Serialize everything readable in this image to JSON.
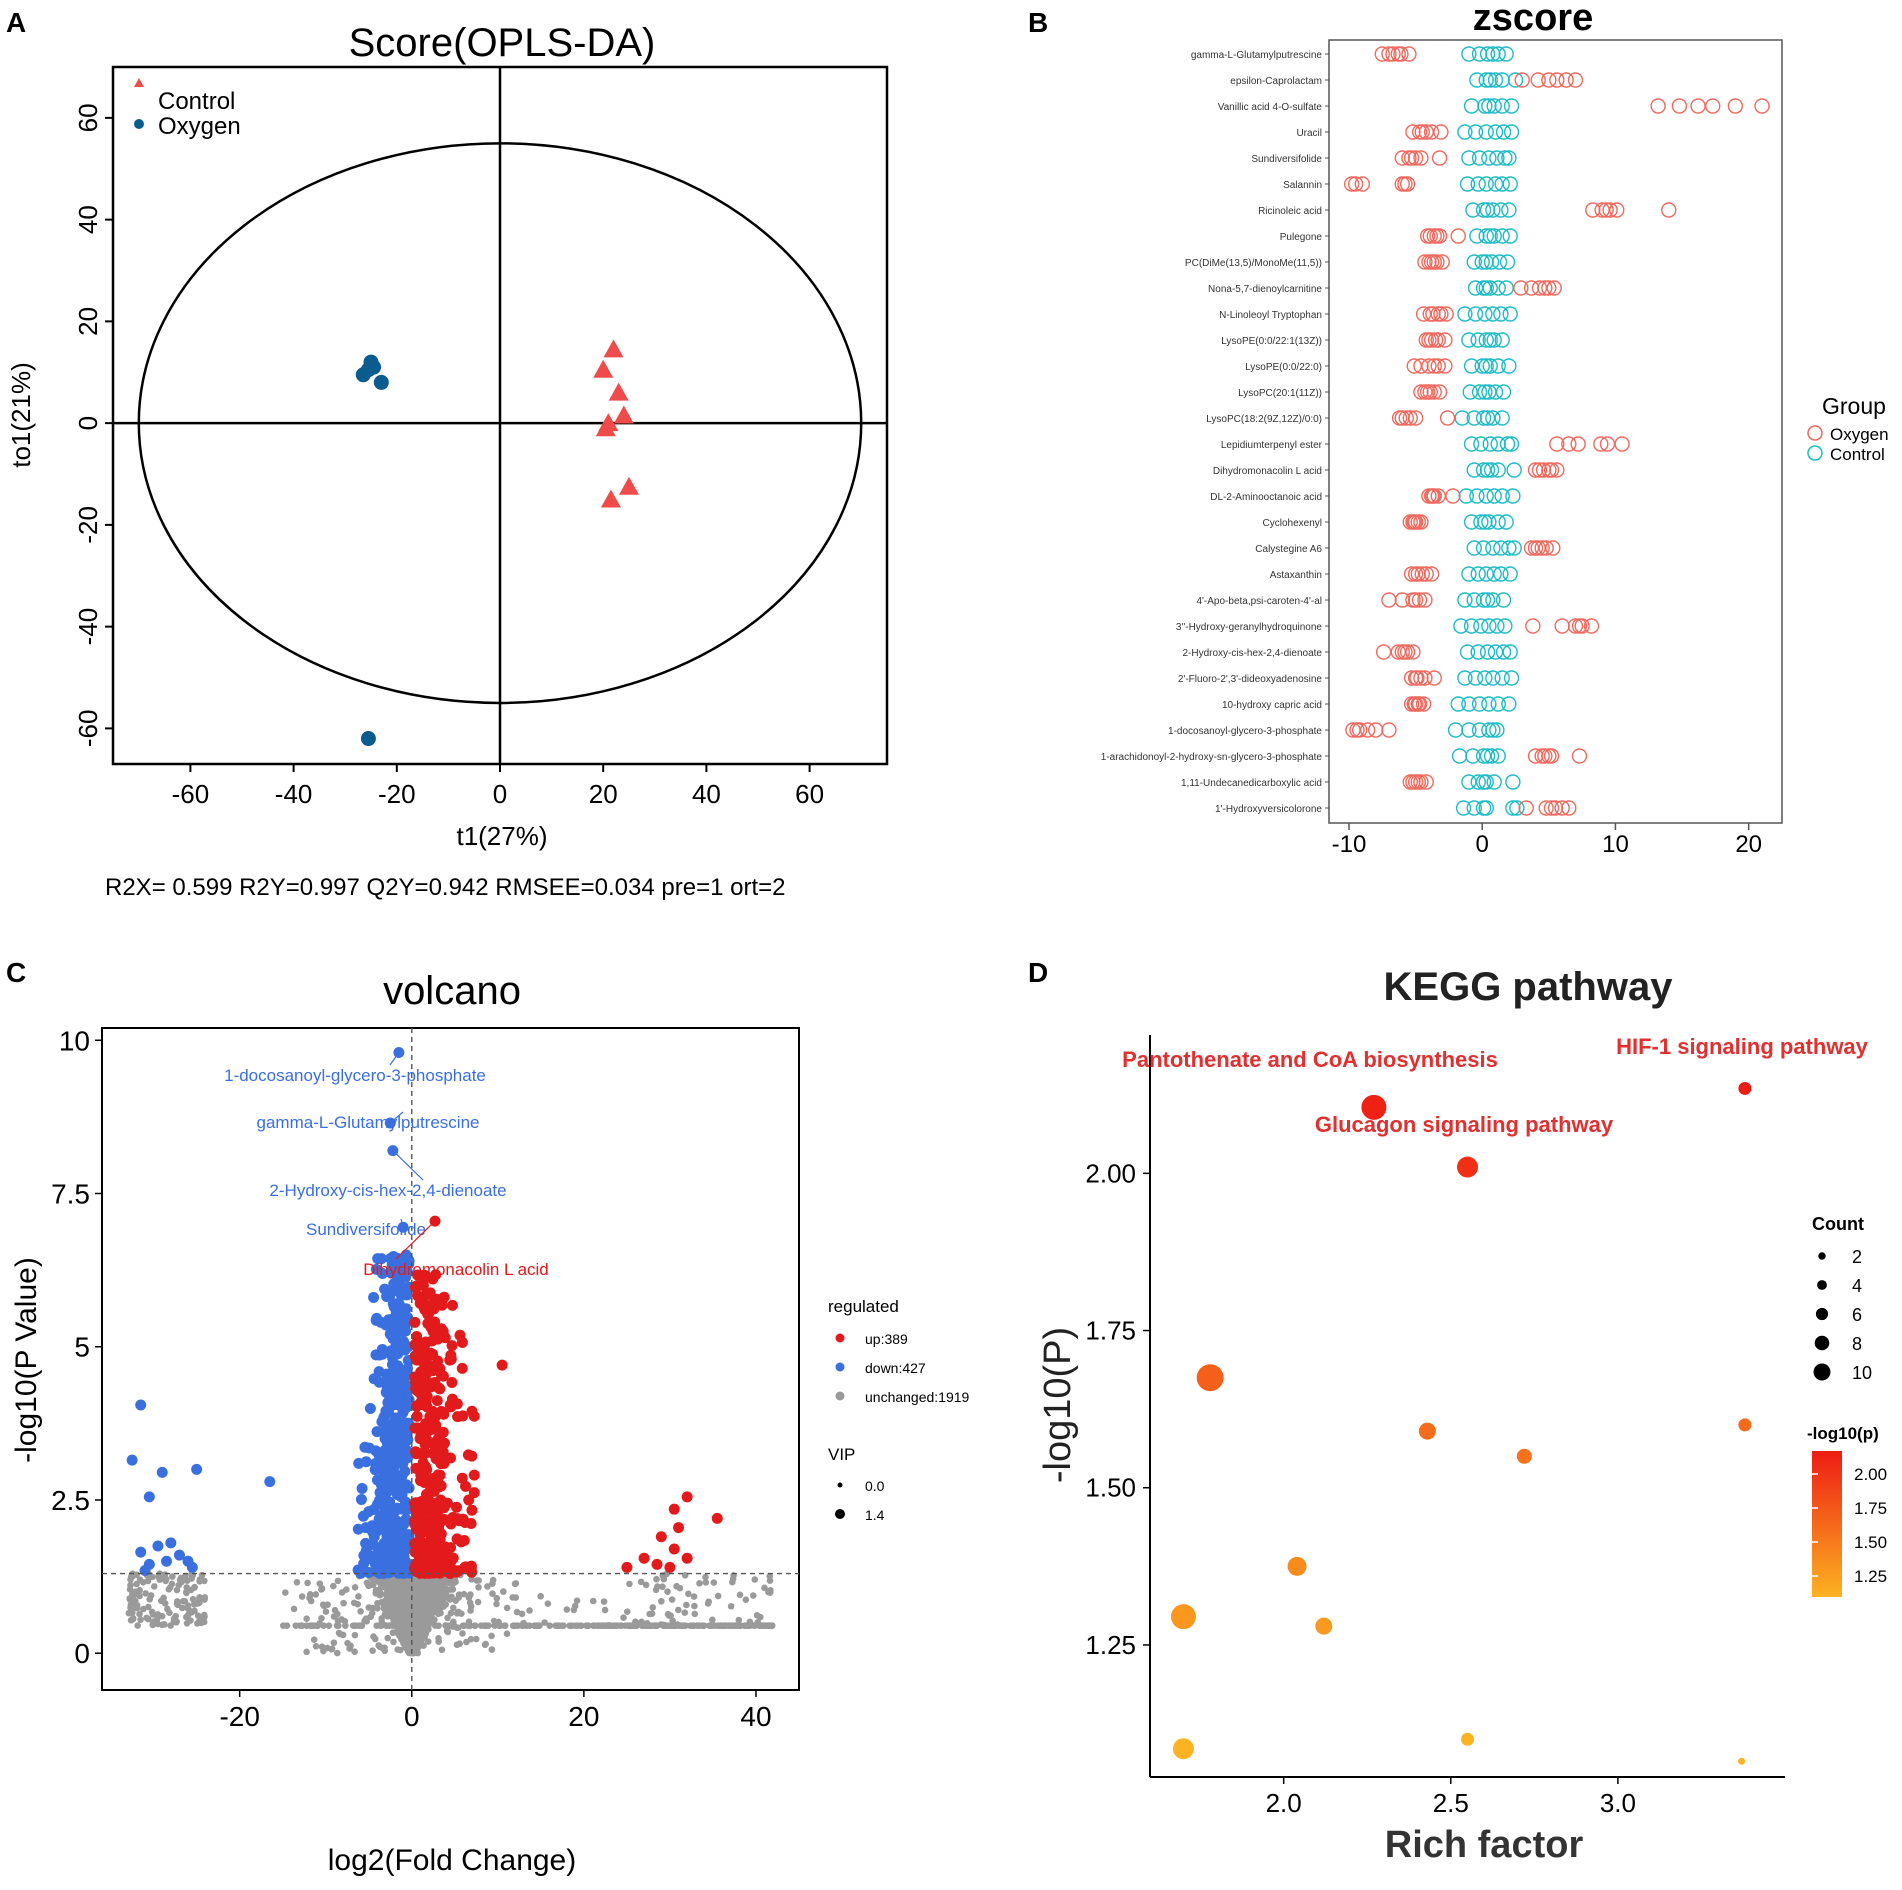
{
  "panels": {
    "A": "A",
    "B": "B",
    "C": "C",
    "D": "D"
  },
  "chart_data": [
    {
      "type": "scatter",
      "title": "Score(OPLS-DA)",
      "xlabel": "t1(27%)",
      "ylabel": "to1(21%)",
      "xlim": [
        -75,
        75
      ],
      "ylim": [
        -67,
        70
      ],
      "xticks": [
        -60,
        -40,
        -20,
        0,
        20,
        40,
        60
      ],
      "yticks": [
        -60,
        -40,
        -20,
        0,
        20,
        40,
        60
      ],
      "ellipse": {
        "rx": 70,
        "ry": 55
      },
      "stats": "R2X= 0.599  R2Y=0.997  Q2Y=0.942  RMSEE=0.034  pre=1  ort=2",
      "legend_position": "top-left",
      "series": [
        {
          "name": "Control",
          "color": "#ef4b4b",
          "marker": "triangle",
          "points": [
            [
              22,
              14.5
            ],
            [
              20,
              10.5
            ],
            [
              23,
              6
            ],
            [
              24,
              1.5
            ],
            [
              21,
              0
            ],
            [
              20.5,
              -1
            ],
            [
              25,
              -12.5
            ],
            [
              21.5,
              -15
            ]
          ]
        },
        {
          "name": "Oxygen",
          "color": "#0b5c8e",
          "marker": "circle",
          "points": [
            [
              -25,
              12
            ],
            [
              -24.5,
              11
            ],
            [
              -26.5,
              9.5
            ],
            [
              -25.5,
              10.5
            ],
            [
              -23,
              8
            ],
            [
              -25.5,
              -62
            ]
          ]
        }
      ]
    },
    {
      "type": "scatter",
      "title": "zscore",
      "xlim": [
        -11.5,
        22.5
      ],
      "xticks": [
        -10,
        0,
        10,
        20
      ],
      "legend_title": "Group",
      "legend_position": "right",
      "groups": [
        {
          "name": "Oxygen",
          "color": "#ee6a5f"
        },
        {
          "name": "Control",
          "color": "#1dbcc6"
        }
      ],
      "metabolites": [
        {
          "name": "gamma-L-Glutamylputrescine",
          "oxygen": [
            -7.5,
            -6.7,
            -6.1,
            -5.5,
            -7.0,
            -6.3
          ],
          "control": [
            -1.0,
            -0.2,
            0.4,
            1.2,
            0.8,
            1.8
          ]
        },
        {
          "name": "epsilon-Caprolactam",
          "oxygen": [
            3.0,
            4.2,
            5.0,
            6.3,
            7.0,
            5.6
          ],
          "control": [
            -0.4,
            0.3,
            1.0,
            1.5,
            0.6,
            2.5
          ]
        },
        {
          "name": "Vanillic acid 4-O-sulfate",
          "oxygen": [
            13.2,
            14.8,
            16.2,
            17.3,
            19.0,
            21.0
          ],
          "control": [
            -0.8,
            0.2,
            0.9,
            1.5,
            0.5,
            2.2
          ]
        },
        {
          "name": "Uracil",
          "oxygen": [
            -5.2,
            -4.7,
            -4.2,
            -3.8,
            -3.1,
            -4.5
          ],
          "control": [
            -1.3,
            -0.5,
            0.3,
            1.0,
            1.6,
            2.2
          ]
        },
        {
          "name": "Sundiversifolide",
          "oxygen": [
            -6.0,
            -5.5,
            -5.0,
            -4.6,
            -3.2,
            -5.3
          ],
          "control": [
            -1.0,
            -0.2,
            0.5,
            1.1,
            1.7,
            2.0
          ]
        },
        {
          "name": "Salannin",
          "oxygen": [
            -9.8,
            -9.0,
            -6.0,
            -5.6,
            -9.5,
            -5.8
          ],
          "control": [
            -1.1,
            -0.3,
            0.3,
            1.0,
            1.5,
            2.1
          ]
        },
        {
          "name": "Ricinoleic acid",
          "oxygen": [
            8.3,
            9.0,
            9.6,
            10.1,
            14.0,
            9.3
          ],
          "control": [
            -0.7,
            0.1,
            0.8,
            1.4,
            2.0,
            0.4
          ]
        },
        {
          "name": "Pulegone",
          "oxygen": [
            -4.1,
            -3.6,
            -3.2,
            -1.8,
            -3.9,
            -3.4
          ],
          "control": [
            -0.4,
            0.3,
            0.9,
            1.5,
            2.1,
            0.6
          ]
        },
        {
          "name": "PC(DiMe(13,5)/MonoMe(11,5))",
          "oxygen": [
            -4.3,
            -3.8,
            -3.4,
            -3.0,
            -3.6,
            -4.0
          ],
          "control": [
            -0.6,
            0.0,
            0.7,
            1.3,
            1.9,
            0.3
          ]
        },
        {
          "name": "Nona-5,7-dienoylcarnitine",
          "oxygen": [
            2.9,
            3.7,
            4.3,
            5.0,
            5.4,
            4.7
          ],
          "control": [
            -0.5,
            0.1,
            0.6,
            1.2,
            1.8,
            0.3
          ]
        },
        {
          "name": "N-Linoleoyl Tryptophan",
          "oxygen": [
            -4.4,
            -3.7,
            -3.1,
            -2.7,
            -3.3,
            -3.9
          ],
          "control": [
            -1.3,
            -0.5,
            0.2,
            0.8,
            1.4,
            2.1
          ]
        },
        {
          "name": "LysoPE(0:0/22:1(13Z))",
          "oxygen": [
            -4.2,
            -3.8,
            -3.3,
            -2.8,
            -3.5,
            -4.0
          ],
          "control": [
            -1.0,
            -0.3,
            0.3,
            0.9,
            1.5,
            0.6
          ]
        },
        {
          "name": "LysoPE(0:0/22:0)",
          "oxygen": [
            -5.1,
            -4.6,
            -4.0,
            -3.3,
            -2.8,
            -3.6
          ],
          "control": [
            -0.8,
            0.0,
            0.6,
            1.2,
            2.0,
            0.3
          ]
        },
        {
          "name": "LysoPC(20:1(11Z))",
          "oxygen": [
            -4.6,
            -4.1,
            -3.6,
            -3.2,
            -3.9,
            -4.3
          ],
          "control": [
            -0.9,
            -0.2,
            0.5,
            1.0,
            1.6,
            0.2
          ]
        },
        {
          "name": "LysoPC(18:2(9Z,12Z)/0:0)",
          "oxygen": [
            -6.2,
            -5.7,
            -5.0,
            -2.6,
            -6.0,
            -5.4
          ],
          "control": [
            -1.5,
            -0.6,
            0.1,
            0.8,
            1.5,
            0.4
          ]
        },
        {
          "name": "Lepidiumterpenyl ester",
          "oxygen": [
            5.6,
            6.5,
            7.2,
            8.9,
            9.4,
            10.5
          ],
          "control": [
            -0.8,
            -0.1,
            0.6,
            1.2,
            1.9,
            2.2
          ]
        },
        {
          "name": "Dihydromonacolin L acid",
          "oxygen": [
            4.0,
            4.6,
            5.2,
            5.6,
            4.3,
            5.0
          ],
          "control": [
            -0.6,
            0.1,
            0.7,
            1.2,
            2.4,
            0.4
          ]
        },
        {
          "name": "DL-2-Aminooctanoic acid",
          "oxygen": [
            -4.0,
            -3.6,
            -2.2,
            -3.8,
            -3.3,
            -3.7
          ],
          "control": [
            -1.2,
            -0.4,
            0.3,
            0.9,
            1.5,
            2.3
          ]
        },
        {
          "name": "Cyclohexenyl",
          "oxygen": [
            -5.4,
            -5.0,
            -4.6,
            -5.2,
            -4.8,
            -5.1
          ],
          "control": [
            -0.8,
            -0.1,
            0.5,
            1.2,
            1.8,
            0.2
          ]
        },
        {
          "name": "Calystegine A6",
          "oxygen": [
            3.7,
            4.2,
            4.8,
            5.3,
            4.0,
            4.5
          ],
          "control": [
            -0.6,
            0.1,
            0.8,
            1.4,
            2.0,
            2.4
          ]
        },
        {
          "name": "Astaxanthin",
          "oxygen": [
            -5.3,
            -4.8,
            -4.2,
            -3.8,
            -4.5,
            -5.0
          ],
          "control": [
            -1.0,
            -0.3,
            0.3,
            0.9,
            1.4,
            2.1
          ]
        },
        {
          "name": "4'-Apo-beta,psi-caroten-4'-al",
          "oxygen": [
            -7.0,
            -6.0,
            -5.2,
            -4.7,
            -4.3,
            -5.0
          ],
          "control": [
            -1.3,
            -0.6,
            0.1,
            0.8,
            1.6,
            0.4
          ]
        },
        {
          "name": "3''-Hydroxy-geranylhydroquinone",
          "oxygen": [
            3.8,
            6.0,
            7.0,
            7.5,
            8.2,
            7.3
          ],
          "control": [
            -1.6,
            -0.8,
            -0.1,
            0.5,
            1.1,
            1.7
          ]
        },
        {
          "name": "2-Hydroxy-cis-hex-2,4-dienoate",
          "oxygen": [
            -7.4,
            -6.3,
            -5.8,
            -5.2,
            -6.0,
            -5.6
          ],
          "control": [
            -1.1,
            -0.3,
            0.4,
            1.0,
            1.6,
            2.1
          ]
        },
        {
          "name": "2'-Fluoro-2',3'-dideoxyadenosine",
          "oxygen": [
            -5.3,
            -4.9,
            -4.3,
            -3.6,
            -5.0,
            -4.6
          ],
          "control": [
            -1.3,
            -0.5,
            0.2,
            0.8,
            1.5,
            2.2
          ]
        },
        {
          "name": "10-hydroxy capric acid",
          "oxygen": [
            -5.3,
            -5.0,
            -4.7,
            -4.4,
            -5.1,
            -4.8
          ],
          "control": [
            -1.8,
            -1.0,
            -0.2,
            0.5,
            1.2,
            2.0
          ]
        },
        {
          "name": "1-docosanoyl-glycero-3-phosphate",
          "oxygen": [
            -9.7,
            -9.2,
            -8.6,
            -8.0,
            -7.0,
            -9.4
          ],
          "control": [
            -2.0,
            -1.0,
            -0.2,
            0.5,
            1.1,
            0.8
          ]
        },
        {
          "name": "1-arachidonoyl-2-hydroxy-sn-glycero-3-phosphate",
          "oxygen": [
            4.0,
            4.7,
            5.2,
            7.3,
            4.5,
            5.0
          ],
          "control": [
            -1.7,
            -0.7,
            0.1,
            0.7,
            1.2,
            0.4
          ]
        },
        {
          "name": "1,11-Undecanedicarboxylic acid",
          "oxygen": [
            -5.4,
            -5.0,
            -4.6,
            -4.2,
            -5.2,
            -4.8
          ],
          "control": [
            -1.0,
            -0.3,
            0.3,
            0.9,
            2.3,
            0.1
          ]
        },
        {
          "name": "1'-Hydroxyversicolorone",
          "oxygen": [
            3.3,
            4.8,
            5.5,
            6.0,
            6.5,
            5.2
          ],
          "control": [
            -1.4,
            -0.6,
            0.1,
            0.3,
            2.3,
            2.6
          ]
        }
      ]
    },
    {
      "type": "scatter",
      "title": "volcano",
      "xlabel": "log2(Fold Change)",
      "ylabel": "-log10(P Value)",
      "xlim": [
        -36,
        45
      ],
      "ylim": [
        -0.6,
        10.2
      ],
      "xticks": [
        -20,
        0,
        20,
        40
      ],
      "yticks": [
        0,
        2.5,
        5,
        7.5,
        10
      ],
      "ytick_labels": [
        "0",
        "2.5",
        "5",
        "7.5",
        "10"
      ],
      "threshold_y": 1.3,
      "threshold_x": 0,
      "legend": {
        "title": "regulated",
        "items": [
          {
            "label": "up:389",
            "color": "#e31a1c"
          },
          {
            "label": "down:427",
            "color": "#3a6fe0"
          },
          {
            "label": "unchanged:1919",
            "color": "#9a9a9a"
          }
        ],
        "size_title": "VIP",
        "size_items": [
          "0.0",
          "1.4"
        ]
      },
      "counts": {
        "up": 389,
        "down": 427,
        "unchanged": 1919
      },
      "annotations": [
        {
          "label": "1-docosanoyl-glycero-3-phosphate",
          "x": -1.5,
          "y": 9.8,
          "color": "#3a6fe0"
        },
        {
          "label": "gamma-L-Glutamylputrescine",
          "x": -2.5,
          "y": 8.65,
          "color": "#3a6fe0"
        },
        {
          "label": "2-Hydroxy-cis-hex-2,4-dienoate",
          "x": -2.2,
          "y": 8.2,
          "color": "#3a6fe0"
        },
        {
          "label": "Sundiversifolide",
          "x": -1.0,
          "y": 6.95,
          "color": "#3a6fe0"
        },
        {
          "label": "Dihydromonacolin L acid",
          "x": 2.7,
          "y": 7.05,
          "color": "#e31a1c"
        }
      ],
      "notable_points": {
        "down": [
          [
            -31.5,
            4.05
          ],
          [
            -32.5,
            3.15
          ],
          [
            -29,
            2.95
          ],
          [
            -25,
            3.0
          ],
          [
            -30.5,
            2.55
          ],
          [
            -16.5,
            2.8
          ],
          [
            -28,
            1.8
          ],
          [
            -29.5,
            1.75
          ],
          [
            -31.5,
            1.65
          ],
          [
            -27,
            1.6
          ],
          [
            -30.5,
            1.45
          ],
          [
            -26,
            1.5
          ],
          [
            -25.5,
            1.4
          ],
          [
            -28.5,
            1.5
          ],
          [
            -31,
            1.35
          ]
        ],
        "up": [
          [
            10.5,
            4.7
          ],
          [
            32,
            2.55
          ],
          [
            30.5,
            2.35
          ],
          [
            35.5,
            2.2
          ],
          [
            31,
            2.05
          ],
          [
            29,
            1.9
          ],
          [
            30.5,
            1.7
          ],
          [
            32,
            1.55
          ],
          [
            27,
            1.55
          ],
          [
            28.5,
            1.45
          ],
          [
            25,
            1.4
          ],
          [
            30,
            1.4
          ]
        ]
      }
    },
    {
      "type": "scatter",
      "title": "KEGG pathway",
      "xlabel": "Rich factor",
      "ylabel": "-log10(P)",
      "xlim": [
        1.6,
        3.5
      ],
      "ylim": [
        1.04,
        2.22
      ],
      "xticks": [
        2.0,
        2.5,
        3.0
      ],
      "xtick_labels": [
        "2.0",
        "2.5",
        "3.0"
      ],
      "yticks": [
        1.25,
        1.5,
        1.75,
        2.0
      ],
      "ytick_labels": [
        "1.25",
        "1.50",
        "1.75",
        "2.00"
      ],
      "size_legend": {
        "title": "Count",
        "values": [
          2,
          4,
          6,
          8,
          10
        ]
      },
      "color_legend": {
        "title": "-log10(p)",
        "ticks": [
          "2.00",
          "1.75",
          "1.50",
          "1.25"
        ],
        "low_color": "#fcb322",
        "high_color": "#ee1c14"
      },
      "points": [
        {
          "x": 2.27,
          "y": 2.105,
          "count": 10,
          "label": "Pantothenate and CoA biosynthesis"
        },
        {
          "x": 3.38,
          "y": 2.135,
          "count": 4,
          "label": "HIF-1 signaling pathway"
        },
        {
          "x": 2.55,
          "y": 2.01,
          "count": 8,
          "label": "Glucagon signaling pathway"
        },
        {
          "x": 1.78,
          "y": 1.675,
          "count": 11,
          "label": ""
        },
        {
          "x": 2.43,
          "y": 1.59,
          "count": 6,
          "label": ""
        },
        {
          "x": 2.72,
          "y": 1.55,
          "count": 5,
          "label": ""
        },
        {
          "x": 3.38,
          "y": 1.6,
          "count": 4,
          "label": ""
        },
        {
          "x": 2.04,
          "y": 1.375,
          "count": 7,
          "label": ""
        },
        {
          "x": 1.7,
          "y": 1.295,
          "count": 10,
          "label": ""
        },
        {
          "x": 2.12,
          "y": 1.28,
          "count": 6,
          "label": ""
        },
        {
          "x": 1.7,
          "y": 1.085,
          "count": 8,
          "label": ""
        },
        {
          "x": 2.55,
          "y": 1.1,
          "count": 4,
          "label": ""
        },
        {
          "x": 3.37,
          "y": 1.065,
          "count": 1,
          "label": ""
        }
      ]
    }
  ]
}
